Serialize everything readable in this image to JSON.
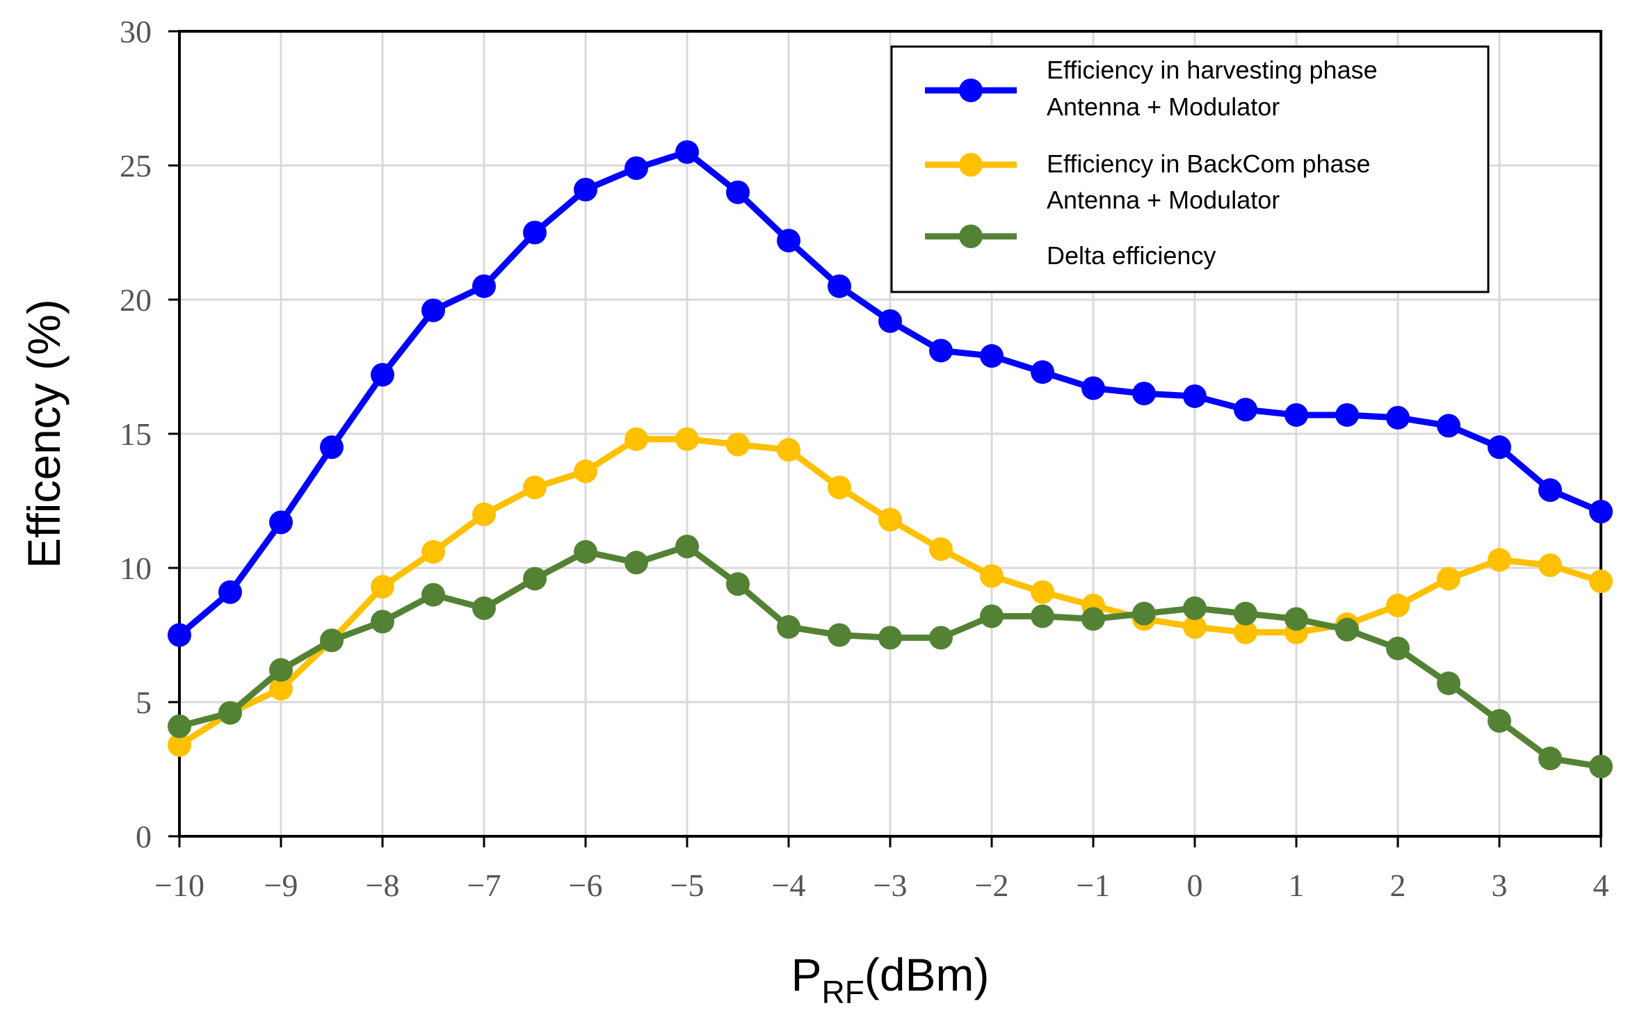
{
  "chart_data": {
    "type": "line",
    "title": "",
    "xlabel_main": "P",
    "xlabel_sub": "RF",
    "xlabel_unit": "(dBm)",
    "ylabel": "Efficency (%)",
    "xlim": [
      -10,
      4
    ],
    "ylim": [
      0,
      30
    ],
    "x_ticks": [
      -10,
      -9,
      -8,
      -7,
      -6,
      -5,
      -4,
      -3,
      -2,
      -1,
      0,
      1,
      2,
      3,
      4
    ],
    "x_tick_labels": [
      "−10",
      "−9",
      "−8",
      "−7",
      "−6",
      "−5",
      "−4",
      "−3",
      "−2",
      "−1",
      "0",
      "1",
      "2",
      "3",
      "4"
    ],
    "y_ticks": [
      0,
      5,
      10,
      15,
      20,
      25,
      30
    ],
    "y_tick_labels": [
      "0",
      "5",
      "10",
      "15",
      "20",
      "25",
      "30"
    ],
    "grid": true,
    "legend_position": "top-right",
    "x": [
      -10,
      -9.5,
      -9,
      -8.5,
      -8,
      -7.5,
      -7,
      -6.5,
      -6,
      -5.5,
      -5,
      -4.5,
      -4,
      -3.5,
      -3,
      -2.5,
      -2,
      -1.5,
      -1,
      -0.5,
      0,
      0.5,
      1,
      1.5,
      2,
      2.5,
      3,
      3.5,
      4
    ],
    "series": [
      {
        "name": "Efficiency in harvesting phase",
        "name_line2": "Antenna + Modulator",
        "color": "#0000ff",
        "values": [
          7.5,
          9.1,
          11.7,
          14.5,
          17.2,
          19.6,
          20.5,
          22.5,
          24.1,
          24.9,
          25.5,
          24.0,
          22.2,
          20.5,
          19.2,
          18.1,
          17.9,
          17.3,
          16.7,
          16.5,
          16.4,
          15.9,
          15.7,
          15.7,
          15.6,
          15.3,
          14.5,
          12.9,
          12.1
        ]
      },
      {
        "name": "Efficiency in BackCom phase",
        "name_line2": "Antenna + Modulator",
        "color": "#ffc000",
        "values": [
          3.4,
          4.6,
          5.5,
          7.3,
          9.3,
          10.6,
          12.0,
          13.0,
          13.6,
          14.8,
          14.8,
          14.6,
          14.4,
          13.0,
          11.8,
          10.7,
          9.7,
          9.1,
          8.6,
          8.1,
          7.8,
          7.6,
          7.6,
          7.9,
          8.6,
          9.6,
          10.3,
          10.1,
          9.5
        ]
      },
      {
        "name": "Delta efficiency",
        "name_line2": "",
        "color": "#548235",
        "values": [
          4.1,
          4.6,
          6.2,
          7.3,
          8.0,
          9.0,
          8.5,
          9.6,
          10.6,
          10.2,
          10.8,
          9.4,
          7.8,
          7.5,
          7.4,
          7.4,
          8.2,
          8.2,
          8.1,
          8.3,
          8.5,
          8.3,
          8.1,
          7.7,
          7.0,
          5.7,
          4.3,
          2.9,
          2.6
        ]
      }
    ]
  }
}
